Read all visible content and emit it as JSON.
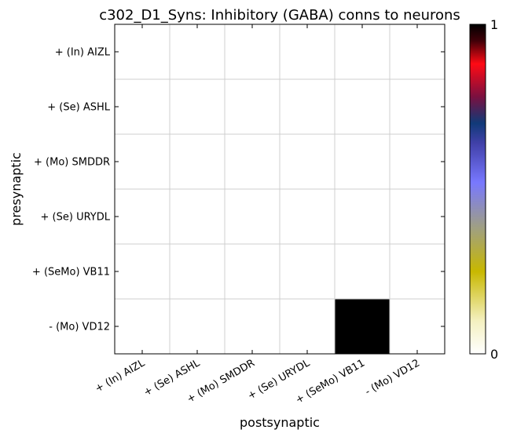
{
  "chart_data": {
    "type": "heatmap",
    "title": "c302_D1_Syns: Inhibitory (GABA) conns to neurons",
    "xlabel": "postsynaptic",
    "ylabel": "presynaptic",
    "x_categories": [
      "+ (In) AIZL",
      "+ (Se) ASHL",
      "+ (Mo) SMDDR",
      "+ (Se) URYDL",
      "+ (SeMo) VB11",
      "- (Mo) VD12"
    ],
    "y_categories": [
      "+ (In) AIZL",
      "+ (Se) ASHL",
      "+ (Mo) SMDDR",
      "+ (Se) URYDL",
      "+ (SeMo) VB11",
      "- (Mo) VD12"
    ],
    "values": [
      [
        0,
        0,
        0,
        0,
        0,
        0
      ],
      [
        0,
        0,
        0,
        0,
        0,
        0
      ],
      [
        0,
        0,
        0,
        0,
        0,
        0
      ],
      [
        0,
        0,
        0,
        0,
        0,
        0
      ],
      [
        0,
        0,
        0,
        0,
        0,
        0
      ],
      [
        0,
        0,
        0,
        0,
        1,
        0
      ]
    ],
    "colorbar": {
      "min": 0,
      "max": 1,
      "min_label": "0",
      "max_label": "1"
    },
    "grid": true,
    "colors": {
      "cmap_stops": [
        "#ffffff",
        "#f3efb0",
        "#c8b800",
        "#a8a070",
        "#7a7aff",
        "#3a3aa0",
        "#103a78",
        "#7a1040",
        "#ff0a14",
        "#000000"
      ]
    }
  }
}
